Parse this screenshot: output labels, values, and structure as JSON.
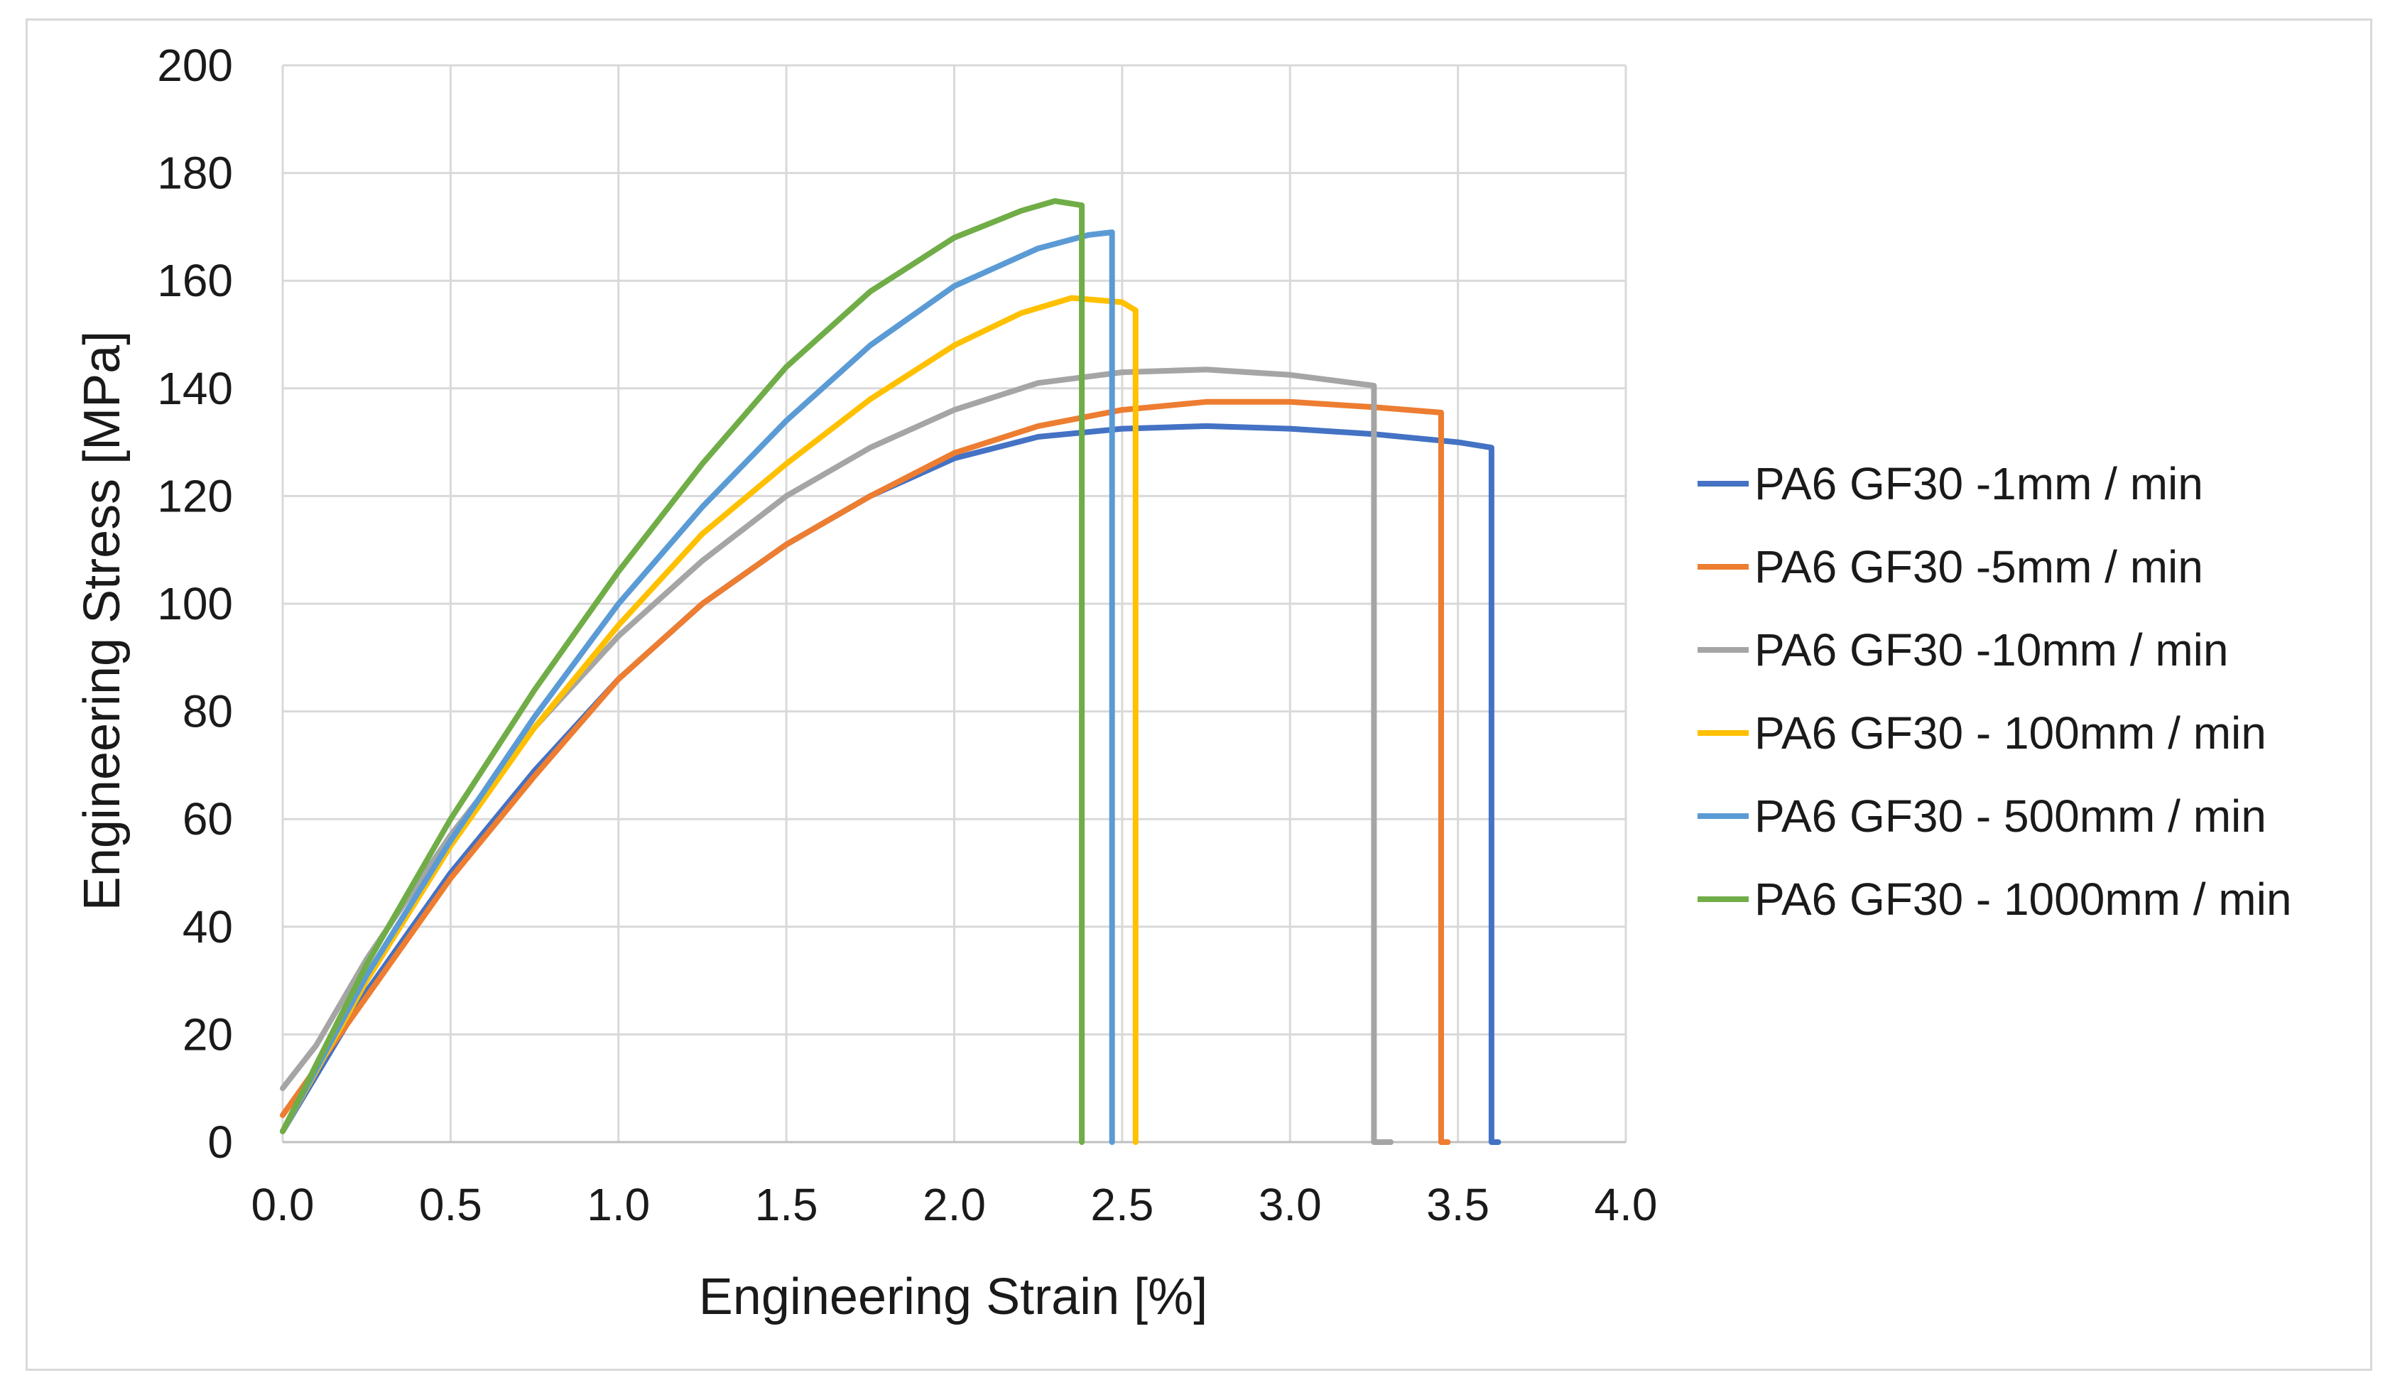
{
  "chart_data": {
    "type": "line",
    "title": "",
    "xlabel": "Engineering Strain [%]",
    "ylabel": "Engineering Stress [MPa]",
    "xlim": [
      0,
      4
    ],
    "ylim": [
      0,
      200
    ],
    "xticks": [
      "0.0",
      "0.5",
      "1.0",
      "1.5",
      "2.0",
      "2.5",
      "3.0",
      "3.5",
      "4.0"
    ],
    "yticks": [
      "0",
      "20",
      "40",
      "60",
      "80",
      "100",
      "120",
      "140",
      "160",
      "180",
      "200"
    ],
    "grid": true,
    "legend_position": "right",
    "series": [
      {
        "name": "PA6 GF30 -1mm / min",
        "color": "#4472c4",
        "x": [
          0,
          0.25,
          0.5,
          0.75,
          1.0,
          1.25,
          1.5,
          1.75,
          2.0,
          2.25,
          2.5,
          2.75,
          3.0,
          3.25,
          3.5,
          3.6,
          3.6,
          3.62
        ],
        "y": [
          2,
          28,
          50,
          69,
          86,
          100,
          111,
          120,
          127,
          131,
          132.5,
          133,
          132.5,
          131.5,
          130,
          129,
          0,
          0
        ]
      },
      {
        "name": "PA6 GF30 -5mm / min",
        "color": "#ed7d31",
        "x": [
          0,
          0.25,
          0.5,
          0.75,
          1.0,
          1.25,
          1.5,
          1.75,
          2.0,
          2.25,
          2.5,
          2.75,
          3.0,
          3.25,
          3.45,
          3.45,
          3.47
        ],
        "y": [
          5,
          27,
          49,
          68,
          86,
          100,
          111,
          120,
          128,
          133,
          136,
          137.5,
          137.5,
          136.5,
          135.5,
          0,
          0
        ]
      },
      {
        "name": "PA6 GF30 -10mm / min",
        "color": "#a5a5a5",
        "x": [
          0,
          0.05,
          0.1,
          0.25,
          0.5,
          0.75,
          1.0,
          1.25,
          1.5,
          1.75,
          2.0,
          2.25,
          2.5,
          2.75,
          3.0,
          3.25,
          3.25,
          3.3
        ],
        "y": [
          10,
          14,
          18,
          34,
          57,
          77,
          94,
          108,
          120,
          129,
          136,
          141,
          143,
          143.5,
          142.5,
          140.5,
          0,
          0
        ]
      },
      {
        "name": "PA6 GF30 - 100mm / min",
        "color": "#ffc000",
        "x": [
          0,
          0.25,
          0.5,
          0.75,
          1.0,
          1.25,
          1.5,
          1.75,
          2.0,
          2.2,
          2.35,
          2.5,
          2.54,
          2.54
        ],
        "y": [
          2,
          30,
          55,
          77,
          96,
          113,
          126,
          138,
          148,
          154,
          156.8,
          156,
          154.5,
          0
        ]
      },
      {
        "name": "PA6 GF30 - 500mm / min",
        "color": "#5b9bd5",
        "x": [
          0,
          0.25,
          0.5,
          0.75,
          1.0,
          1.25,
          1.5,
          1.75,
          2.0,
          2.25,
          2.4,
          2.47,
          2.47
        ],
        "y": [
          2,
          31,
          56,
          79,
          100,
          118,
          134,
          148,
          159,
          166,
          168.5,
          169,
          0
        ]
      },
      {
        "name": "PA6 GF30 - 1000mm / min",
        "color": "#70ad47",
        "x": [
          0,
          0.25,
          0.5,
          0.75,
          1.0,
          1.25,
          1.5,
          1.75,
          2.0,
          2.2,
          2.3,
          2.38,
          2.38
        ],
        "y": [
          2,
          33,
          60,
          84,
          106,
          126,
          144,
          158,
          168,
          173,
          174.8,
          174,
          0
        ]
      }
    ]
  }
}
